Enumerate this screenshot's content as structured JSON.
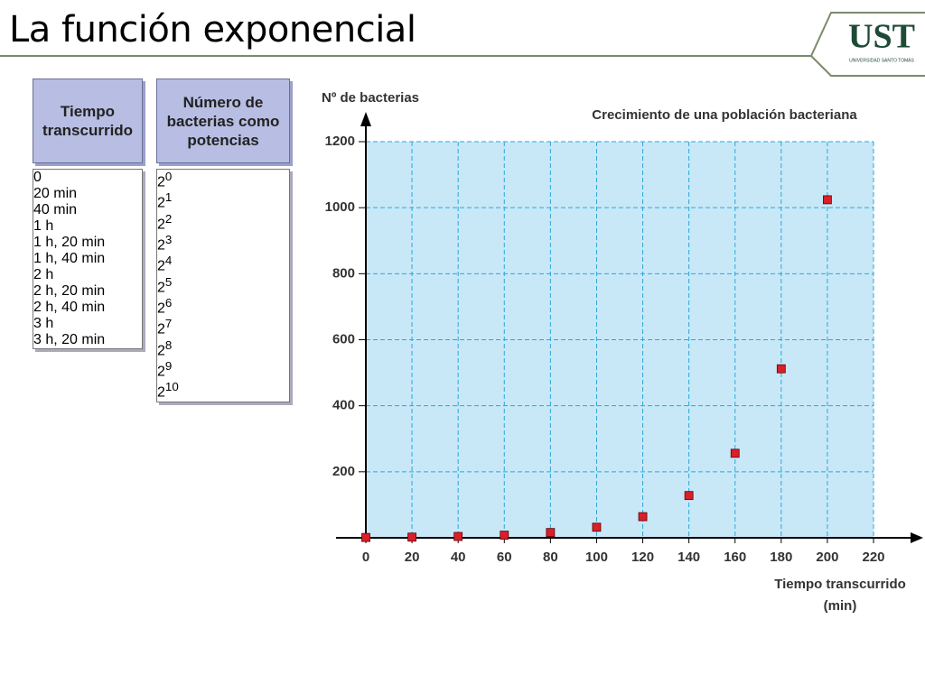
{
  "header": {
    "title": "La función exponencial",
    "logo": "UST",
    "logo_subtitle": "UNIVERSIDAD SANTO TOMÁS"
  },
  "table": {
    "columns": [
      "Tiempo transcurrido",
      "Número de bacterias como potencias"
    ],
    "rows": [
      [
        "0",
        {
          "base": 2,
          "exponent": 0
        }
      ],
      [
        "20 min",
        {
          "base": 2,
          "exponent": 1
        }
      ],
      [
        "40 min",
        {
          "base": 2,
          "exponent": 2
        }
      ],
      [
        "1 h",
        {
          "base": 2,
          "exponent": 3
        }
      ],
      [
        "1 h, 20 min",
        {
          "base": 2,
          "exponent": 4
        }
      ],
      [
        "1 h, 40 min",
        {
          "base": 2,
          "exponent": 5
        }
      ],
      [
        "2 h",
        {
          "base": 2,
          "exponent": 6
        }
      ],
      [
        "2 h, 20 min",
        {
          "base": 2,
          "exponent": 7
        }
      ],
      [
        "2 h, 40 min",
        {
          "base": 2,
          "exponent": 8
        }
      ],
      [
        "3 h",
        {
          "base": 2,
          "exponent": 9
        }
      ],
      [
        "3 h, 20 min",
        {
          "base": 2,
          "exponent": 10
        }
      ]
    ]
  },
  "chart_data": {
    "type": "scatter",
    "title": "Crecimiento de una población bacteriana",
    "ylabel": "Nº de bacterias",
    "xlabel": "Tiempo transcurrido (min)",
    "x": [
      0,
      20,
      40,
      60,
      80,
      100,
      120,
      140,
      160,
      180,
      200
    ],
    "values": [
      1,
      2,
      4,
      8,
      16,
      32,
      64,
      128,
      256,
      512,
      1024
    ],
    "color": "#d8202a",
    "xlim": [
      0,
      220
    ],
    "ylim": [
      0,
      1200
    ],
    "xticks": [
      0,
      20,
      40,
      60,
      80,
      100,
      120,
      140,
      160,
      180,
      200,
      220
    ],
    "yticks": [
      200,
      400,
      600,
      800,
      1000,
      1200
    ],
    "grid": true
  }
}
